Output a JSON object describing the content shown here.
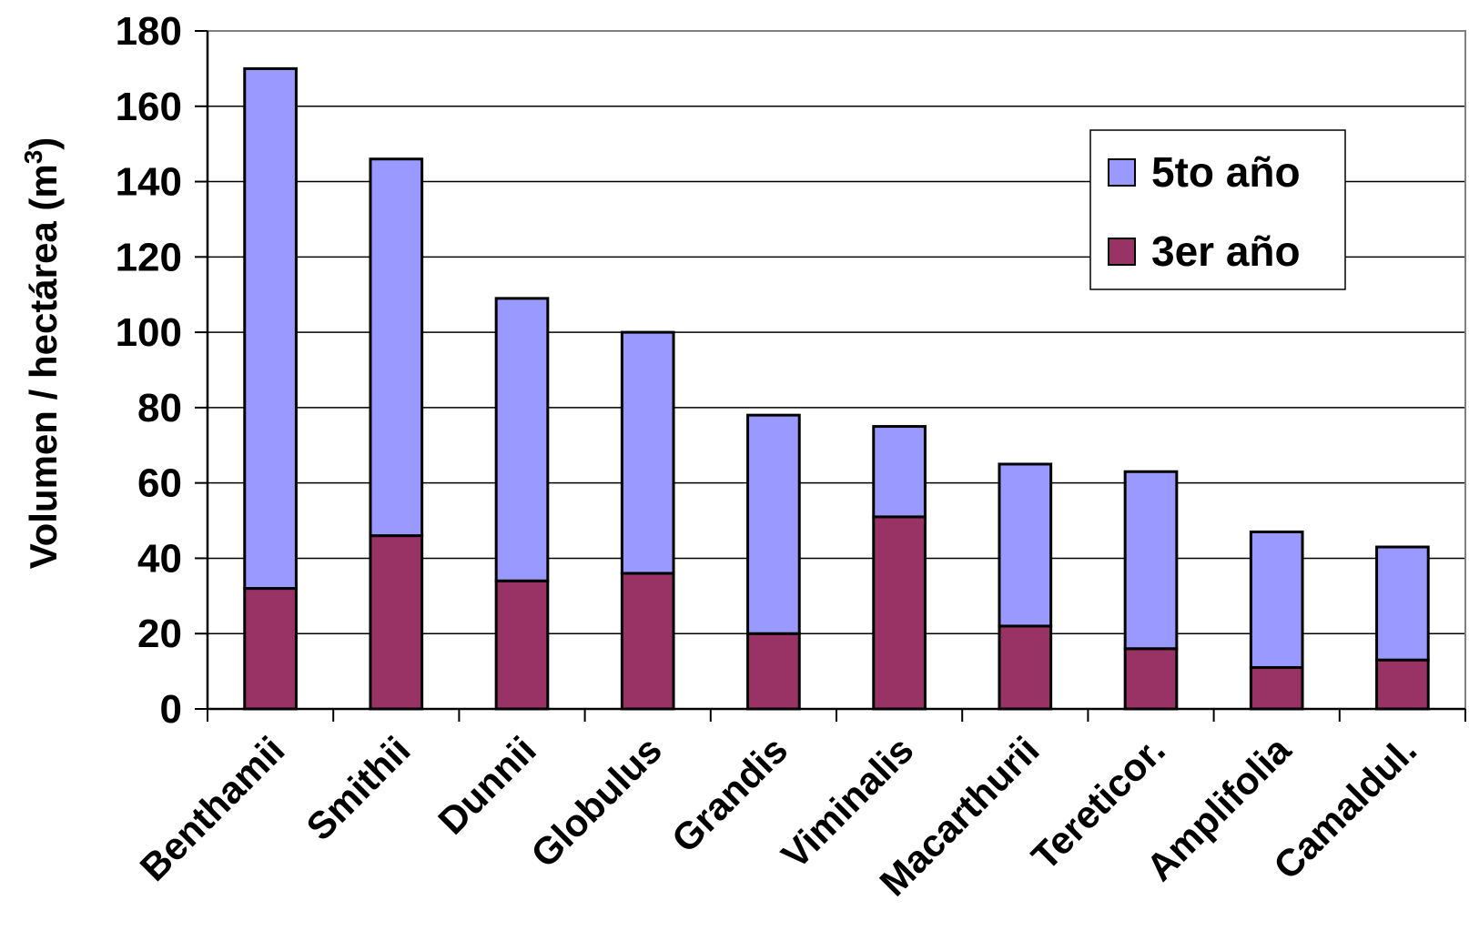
{
  "chart_data": {
    "type": "bar",
    "stacked": true,
    "categories": [
      "Benthamii",
      "Smithii",
      "Dunnii",
      "Globulus",
      "Grandis",
      "Viminalis",
      "Macarthurii",
      "Tereticor.",
      "Amplifolia",
      "Camaldul."
    ],
    "series": [
      {
        "name": "3er año",
        "values": [
          32,
          46,
          34,
          36,
          20,
          51,
          22,
          16,
          11,
          13
        ],
        "color": "#993366"
      },
      {
        "name": "5to año",
        "values": [
          138,
          100,
          75,
          64,
          58,
          24,
          43,
          47,
          36,
          30
        ],
        "color": "#9999ff"
      }
    ],
    "ylabel_main": "Volumen / hectárea (m",
    "ylabel_sup": "3",
    "ylabel_close": ")",
    "ylim": [
      0,
      180
    ],
    "yticks": [
      "0",
      "20",
      "40",
      "60",
      "80",
      "100",
      "120",
      "140",
      "160",
      "180"
    ],
    "grid": true,
    "legend": {
      "placement": "top-right",
      "items": [
        {
          "label": "5to año",
          "color": "#9999ff"
        },
        {
          "label": "3er año",
          "color": "#993366"
        }
      ]
    }
  }
}
